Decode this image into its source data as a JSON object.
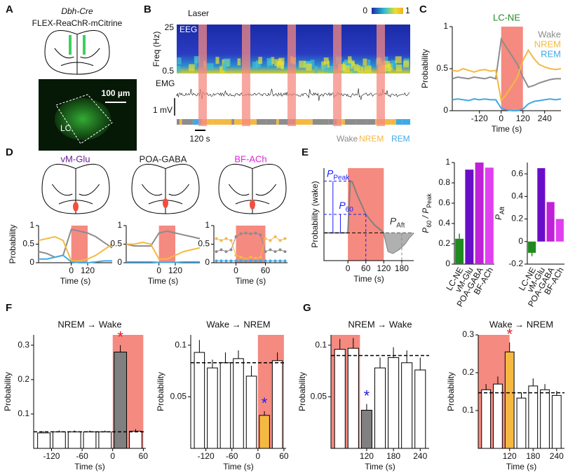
{
  "panel_letters": [
    "A",
    "B",
    "C",
    "D",
    "E",
    "F",
    "G"
  ],
  "panel_a": {
    "genotype": "Dbh-Cre",
    "construct": "FLEX-ReaChR-mCitrine",
    "scale": "100 µm",
    "region": "LC"
  },
  "panel_b": {
    "laser": "Laser",
    "eeg": "EEG",
    "freq_label": "Freq (Hz)",
    "freq_ticks": [
      "25",
      "0.5"
    ],
    "emg": "EMG",
    "mv": "1 mV",
    "time_scale": "120 s",
    "colorbar": [
      "0",
      "1"
    ],
    "states": [
      {
        "name": "Wake",
        "color": "#8c8c8c"
      },
      {
        "name": "NREM",
        "color": "#f5b942"
      },
      {
        "name": "REM",
        "color": "#3fa9e6"
      }
    ]
  },
  "chart_data": [
    {
      "type": "line",
      "title": "LC-NE",
      "title_color": "#1f8a1f",
      "ylabel": "Probability",
      "xlabel": "Time (s)",
      "legend": "upper right",
      "x": [
        -270,
        -240,
        -210,
        -180,
        -150,
        -120,
        -90,
        -60,
        -30,
        0,
        30,
        60,
        90,
        120,
        150,
        180,
        210,
        240,
        270,
        300,
        330
      ],
      "xlim": [
        -270,
        330
      ],
      "xticks": [
        -120,
        0,
        120,
        240
      ],
      "ylim": [
        0,
        1
      ],
      "yticks": [
        0,
        0.5,
        1
      ],
      "laser": [
        0,
        120
      ],
      "laser_color": "#f58a80",
      "series": [
        {
          "name": "Wake",
          "color": "#8c8c8c",
          "values": [
            0.38,
            0.4,
            0.39,
            0.38,
            0.4,
            0.39,
            0.38,
            0.4,
            0.38,
            0.85,
            0.75,
            0.65,
            0.55,
            0.4,
            0.28,
            0.3,
            0.33,
            0.35,
            0.37,
            0.38,
            0.38
          ]
        },
        {
          "name": "NREM",
          "color": "#f5b942",
          "values": [
            0.48,
            0.47,
            0.5,
            0.48,
            0.46,
            0.48,
            0.49,
            0.47,
            0.48,
            0.12,
            0.2,
            0.3,
            0.4,
            0.6,
            0.72,
            0.62,
            0.55,
            0.52,
            0.5,
            0.49,
            0.5
          ]
        },
        {
          "name": "REM",
          "color": "#3fa9e6",
          "values": [
            0.13,
            0.14,
            0.13,
            0.12,
            0.14,
            0.13,
            0.14,
            0.13,
            0.13,
            0.03,
            0.01,
            0,
            0,
            0.02,
            0.08,
            0.11,
            0.12,
            0.13,
            0.14,
            0.13,
            0.14
          ]
        }
      ]
    },
    {
      "type": "line",
      "title": "vM-Glu",
      "title_color": "#6a1b9a",
      "ylabel": "Probability",
      "xlabel": "Time (s)",
      "x": [
        -240,
        -180,
        -120,
        -60,
        0,
        60,
        120,
        180,
        240,
        300
      ],
      "xlim": [
        -240,
        300
      ],
      "xticks": [
        0,
        120
      ],
      "ylim": [
        0,
        1
      ],
      "yticks": [
        0,
        0.5,
        1
      ],
      "laser": [
        0,
        120
      ],
      "laser_color": "#f58a80",
      "series": [
        {
          "color": "#8c8c8c",
          "values": [
            0.3,
            0.25,
            0.15,
            0.2,
            0.9,
            0.85,
            0.8,
            0.7,
            0.55,
            0.4
          ]
        },
        {
          "color": "#f5b942",
          "values": [
            0.6,
            0.65,
            0.7,
            0.6,
            0.05,
            0.05,
            0.1,
            0.2,
            0.35,
            0.5
          ]
        },
        {
          "color": "#3fa9e6",
          "values": [
            0.1,
            0.1,
            0.15,
            0.2,
            0.02,
            0,
            0,
            0.02,
            0.05,
            0.05
          ]
        }
      ]
    },
    {
      "type": "line",
      "title": "POA-GABA",
      "title_color": "#222222",
      "xlabel": "Time (s)",
      "x": [
        -240,
        -180,
        -120,
        -60,
        0,
        60,
        120,
        180,
        240,
        300
      ],
      "xlim": [
        -240,
        300
      ],
      "xticks": [
        0,
        120
      ],
      "ylim": [
        0,
        1
      ],
      "yticks": [
        0,
        0.5,
        1
      ],
      "laser": [
        0,
        120
      ],
      "laser_color": "#f58a80",
      "series": [
        {
          "color": "#8c8c8c",
          "values": [
            0.5,
            0.45,
            0.45,
            0.45,
            0.8,
            0.85,
            0.8,
            0.75,
            0.7,
            0.65
          ]
        },
        {
          "color": "#f5b942",
          "values": [
            0.5,
            0.5,
            0.55,
            0.5,
            0.1,
            0.1,
            0.2,
            0.3,
            0.35,
            0.4
          ]
        },
        {
          "color": "#3fa9e6",
          "values": [
            0.02,
            0.02,
            0.02,
            0.02,
            0.01,
            0.01,
            0.01,
            0.02,
            0.02,
            0.02
          ]
        }
      ]
    },
    {
      "type": "line",
      "title": "BF-ACh",
      "title_color": "#e020e0",
      "xlabel": "Time (s)",
      "markers": true,
      "x": [
        -40,
        -30,
        -20,
        -10,
        0,
        10,
        20,
        30,
        40,
        50,
        60,
        70,
        80,
        90,
        100
      ],
      "xlim": [
        -45,
        105
      ],
      "xticks": [
        0,
        60
      ],
      "ylim": [
        0,
        1
      ],
      "yticks": [
        0,
        0.5,
        1
      ],
      "laser": [
        0,
        60
      ],
      "laser_color": "#f58a80",
      "series": [
        {
          "color": "#8c8c8c",
          "values": [
            0.3,
            0.35,
            0.3,
            0.35,
            0.7,
            0.78,
            0.8,
            0.78,
            0.8,
            0.75,
            0.3,
            0.35,
            0.3,
            0.35,
            0.3
          ]
        },
        {
          "color": "#f5b942",
          "values": [
            0.65,
            0.6,
            0.65,
            0.6,
            0.2,
            0.15,
            0.1,
            0.15,
            0.12,
            0.15,
            0.65,
            0.6,
            0.7,
            0.6,
            0.65
          ]
        },
        {
          "color": "#3fa9e6",
          "values": [
            0.05,
            0.05,
            0.05,
            0.05,
            0.05,
            0.05,
            0.05,
            0.05,
            0.05,
            0.05,
            0.05,
            0.05,
            0.05,
            0.05,
            0.05
          ]
        }
      ]
    },
    {
      "type": "line",
      "ylabel": "Probability (wake)",
      "xlabel": "Time (s)",
      "annotations": [
        "P",
        "Peak",
        "P",
        "60",
        "P",
        "Aft"
      ],
      "annotation_color": "#1a1aff",
      "x": [
        -80,
        -40,
        0,
        8,
        15,
        30,
        60,
        90,
        110,
        120,
        135,
        150,
        170,
        190,
        205,
        220
      ],
      "xlim": [
        -80,
        220
      ],
      "xticks": [
        0,
        60,
        120,
        180
      ],
      "ylim": [
        0,
        1
      ],
      "laser": [
        0,
        120
      ],
      "laser_color": "#f58a80",
      "baseline": 0.3,
      "series": [
        {
          "color": "#808080",
          "values": [
            0.3,
            0.3,
            0.3,
            0.86,
            0.85,
            0.72,
            0.5,
            0.38,
            0.33,
            0.3,
            0.1,
            0.08,
            0.12,
            0.18,
            0.25,
            0.3
          ]
        }
      ]
    },
    {
      "type": "bar",
      "ylabel": [
        "P",
        "60",
        " / P",
        "Peak"
      ],
      "categories": [
        "LC-NE",
        "vM-Glu",
        "POA-GABA",
        "BF-ACh"
      ],
      "values": [
        0.25,
        0.93,
        1.0,
        0.95
      ],
      "errors": [
        0.05,
        null,
        null,
        null
      ],
      "colors": [
        "#1f8a1f",
        "#6a0dc8",
        "#c020d8",
        "#e040f0"
      ],
      "ylim": [
        0,
        1
      ],
      "yticks": [
        0,
        0.2,
        0.4,
        0.6,
        0.8,
        1
      ]
    },
    {
      "type": "bar",
      "ylabel": [
        "P",
        "Aft"
      ],
      "categories": [
        "LC-NE",
        "vM-Glu",
        "POA-GABA",
        "BF-ACh"
      ],
      "values": [
        -0.1,
        0.65,
        0.35,
        0.2
      ],
      "errors": [
        0.03,
        null,
        null,
        null
      ],
      "colors": [
        "#1f8a1f",
        "#6a0dc8",
        "#c020d8",
        "#e040f0"
      ],
      "ylim": [
        -0.2,
        0.7
      ],
      "yticks": [
        -0.2,
        0,
        0.2,
        0.4,
        0.6
      ]
    },
    {
      "type": "histogram",
      "title": "NREM → Wake",
      "ylabel": "Probability",
      "xlabel": "Time (s)",
      "bins": [
        -150,
        -120,
        -90,
        -60,
        -30,
        0,
        30,
        60
      ],
      "values": [
        0.045,
        0.048,
        0.048,
        0.048,
        0.048,
        0.28,
        0.05
      ],
      "errors": [
        0.005,
        0.004,
        0.004,
        0.004,
        0.004,
        0.02,
        0.006
      ],
      "colors": [
        "#ffffff",
        "#ffffff",
        "#ffffff",
        "#ffffff",
        "#ffffff",
        "#808080",
        "#ffffff"
      ],
      "xlim": [
        -155,
        65
      ],
      "xticks": [
        -120,
        -60,
        0,
        60
      ],
      "ylim": [
        0,
        0.33
      ],
      "yticks": [
        0.1,
        0.2,
        0.3
      ],
      "laser": [
        0,
        60
      ],
      "laser_color": "#f58a80",
      "baseline": 0.048,
      "star": {
        "text": "*",
        "bar": 5,
        "color": "#e02020"
      }
    },
    {
      "type": "histogram",
      "title": "Wake → NREM",
      "ylabel": "Probability",
      "xlabel": "Time (s)",
      "bins": [
        -150,
        -120,
        -90,
        -60,
        -30,
        0,
        30,
        60
      ],
      "values": [
        0.093,
        0.078,
        0.083,
        0.087,
        0.07,
        0.032,
        0.085
      ],
      "errors": [
        0.012,
        0.008,
        0.01,
        0.008,
        0.01,
        0.004,
        0.008
      ],
      "colors": [
        "#ffffff",
        "#ffffff",
        "#ffffff",
        "#ffffff",
        "#ffffff",
        "#f5b942",
        "#ffffff"
      ],
      "xlim": [
        -155,
        65
      ],
      "xticks": [
        -120,
        -60,
        0,
        60
      ],
      "ylim": [
        0,
        0.11
      ],
      "yticks": [
        0.05,
        0.1
      ],
      "laser": [
        0,
        60
      ],
      "laser_color": "#f58a80",
      "baseline": 0.083,
      "star": {
        "text": "*",
        "bar": 5,
        "color": "#2020e0"
      }
    },
    {
      "type": "histogram",
      "title": "NREM → Wake",
      "ylabel": "Probability",
      "xlabel": "Time (s)",
      "bins": [
        45,
        75,
        105,
        135,
        165,
        195,
        225,
        255
      ],
      "values": [
        0.096,
        0.097,
        0.037,
        0.078,
        0.088,
        0.083,
        0.076
      ],
      "errors": [
        0.01,
        0.01,
        0.006,
        0.01,
        0.01,
        0.012,
        0.012
      ],
      "colors": [
        "#ffffff",
        "#ffffff",
        "#808080",
        "#ffffff",
        "#ffffff",
        "#ffffff",
        "#ffffff"
      ],
      "xlim": [
        40,
        260
      ],
      "xticks": [
        120,
        180,
        240
      ],
      "ylim": [
        0,
        0.11
      ],
      "yticks": [
        0.05,
        0.1
      ],
      "laser": [
        40,
        105
      ],
      "laser_color": "#f58a80",
      "baseline": 0.09,
      "star": {
        "text": "*",
        "bar": 2,
        "color": "#2020e0"
      }
    },
    {
      "type": "histogram",
      "title": "Wake → NREM",
      "ylabel": "Probability",
      "xlabel": "Time (s)",
      "bins": [
        45,
        75,
        105,
        135,
        165,
        195,
        225,
        255
      ],
      "values": [
        0.155,
        0.17,
        0.255,
        0.133,
        0.165,
        0.155,
        0.14
      ],
      "errors": [
        0.015,
        0.02,
        0.025,
        0.015,
        0.02,
        0.015,
        0.012
      ],
      "colors": [
        "#ffffff",
        "#ffffff",
        "#f5b942",
        "#ffffff",
        "#ffffff",
        "#ffffff",
        "#ffffff"
      ],
      "xlim": [
        40,
        260
      ],
      "xticks": [
        120,
        180,
        240
      ],
      "ylim": [
        0,
        0.3
      ],
      "yticks": [
        0.1,
        0.2,
        0.3
      ],
      "laser": [
        40,
        120
      ],
      "laser_color": "#f58a80",
      "baseline": 0.147,
      "star": {
        "text": "*",
        "bar": 2,
        "color": "#e02020"
      }
    }
  ]
}
